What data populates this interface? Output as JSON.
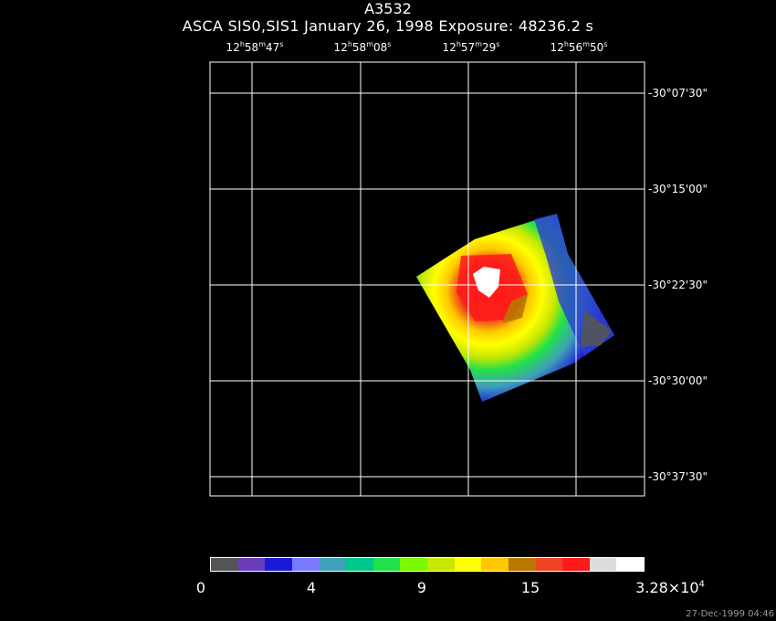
{
  "title": "A3532",
  "subtitle": "ASCA SIS0,SIS1 January 26, 1998 Exposure: 48236.2 s",
  "ra_ticks": [
    {
      "h": "12",
      "m": "58",
      "s": "47"
    },
    {
      "h": "12",
      "m": "58",
      "s": "08"
    },
    {
      "h": "12",
      "m": "57",
      "s": "29"
    },
    {
      "h": "12",
      "m": "56",
      "s": "50"
    }
  ],
  "dec_ticks": [
    "-30°07'30\"",
    "-30°15'00\"",
    "-30°22'30\"",
    "-30°30'00\"",
    "-30°37'30\""
  ],
  "colorbar": {
    "colors": [
      "#555555",
      "#6a3db8",
      "#1a1ad6",
      "#7a7aff",
      "#3fa0b8",
      "#00c88c",
      "#22e04a",
      "#7cf800",
      "#c8e800",
      "#ffff00",
      "#ffc800",
      "#b87800",
      "#ee4422",
      "#ff1a1a",
      "#dddddd",
      "#ffffff"
    ],
    "tick_labels": [
      "0",
      "4",
      "9",
      "15"
    ],
    "max_label_mantissa": "3.28×10",
    "max_label_exponent": "4"
  },
  "timestamp": "27-Dec-1999 04:46"
}
